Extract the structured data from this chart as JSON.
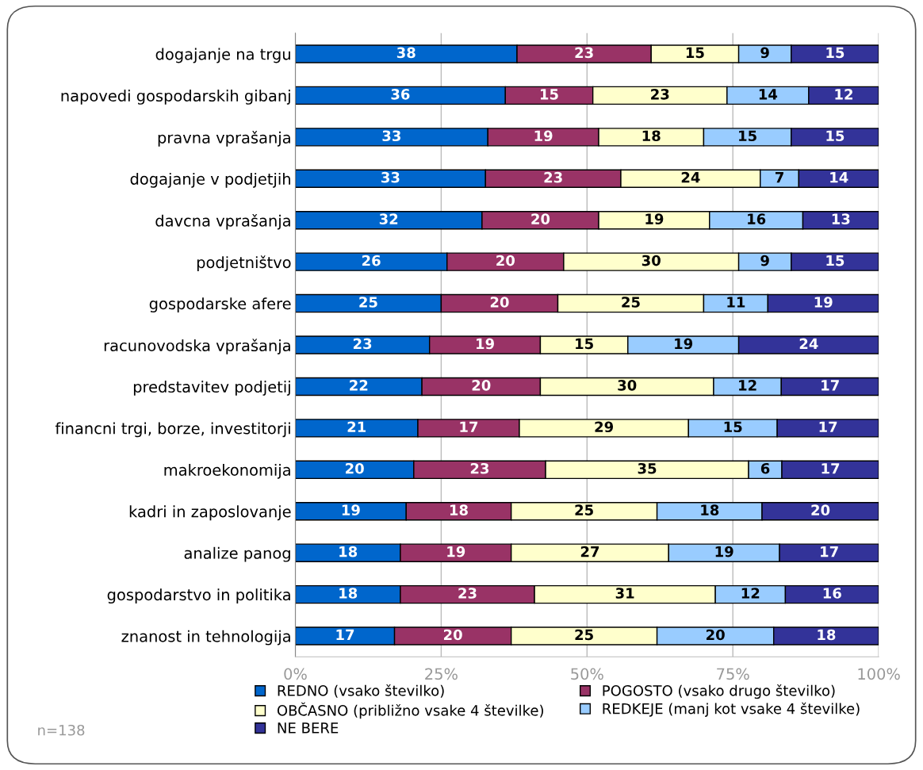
{
  "chart_data": {
    "type": "bar",
    "orientation": "horizontal",
    "stacked": true,
    "categories": [
      "dogajanje na trgu",
      "napovedi gospodarskih gibanj",
      "pravna vprašanja",
      "dogajanje v podjetjih",
      "davcna vprašanja",
      "podjetništvo",
      "gospodarske afere",
      "racunovodska vprašanja",
      "predstavitev podjetij",
      "financni trgi, borze, investitorji",
      "makroekonomija",
      "kadri in zaposlovanje",
      "analize panog",
      "gospodarstvo in politika",
      "znanost in tehnologija"
    ],
    "series": [
      {
        "name": "REDNO (vsako številko)",
        "color": "#0066cc",
        "values": [
          38,
          36,
          33,
          32.6,
          32,
          26,
          25,
          23,
          21.7,
          21.0,
          20.3,
          19,
          18,
          18,
          17
        ],
        "value_labels": [
          "38",
          "36",
          "33",
          "33",
          "32",
          "26",
          "25",
          "23",
          "22",
          "21",
          "20",
          "19",
          "18",
          "18",
          "17"
        ]
      },
      {
        "name": "POGOSTO (vsako drugo številko)",
        "color": "#993366",
        "values": [
          23,
          15,
          19,
          23.2,
          20,
          20,
          20,
          19,
          20.3,
          17.4,
          22.6,
          18,
          19,
          23,
          20
        ],
        "value_labels": [
          "23",
          "15",
          "19",
          "23",
          "20",
          "20",
          "20",
          "19",
          "20",
          "17",
          "23",
          "18",
          "19",
          "23",
          "20"
        ]
      },
      {
        "name": "OBČASNO (približno vsake 4 številke)",
        "color": "#ffffcc",
        "values": [
          15,
          23,
          18,
          23.9,
          19,
          30,
          25,
          15,
          29.7,
          29.0,
          34.8,
          25,
          27,
          31,
          25
        ],
        "value_labels": [
          "15",
          "23",
          "18",
          "24",
          "19",
          "30",
          "25",
          "15",
          "30",
          "29",
          "35",
          "25",
          "27",
          "31",
          "25"
        ]
      },
      {
        "name": "REDKEJE (manj kot vsake 4 številke)",
        "color": "#99ccff",
        "values": [
          9,
          14,
          15,
          6.6,
          16,
          9,
          11,
          19,
          11.6,
          15.2,
          5.7,
          18,
          19,
          12,
          20
        ],
        "value_labels": [
          "9",
          "14",
          "15",
          "7",
          "16",
          "9",
          "11",
          "19",
          "12",
          "15",
          "6",
          "18",
          "19",
          "12",
          "20"
        ]
      },
      {
        "name": "NE BERE",
        "color": "#333399",
        "values": [
          15,
          12,
          15,
          13.7,
          13,
          15,
          19,
          24,
          16.7,
          17.4,
          16.6,
          20,
          17,
          16,
          18
        ],
        "value_labels": [
          "15",
          "12",
          "15",
          "14",
          "13",
          "15",
          "19",
          "24",
          "17",
          "17",
          "17",
          "20",
          "17",
          "16",
          "18"
        ]
      }
    ],
    "xlim": [
      0,
      100
    ],
    "xticks": [
      {
        "value": 0,
        "label": "0%"
      },
      {
        "value": 25,
        "label": "25%"
      },
      {
        "value": 50,
        "label": "50%"
      },
      {
        "value": 75,
        "label": "75%"
      },
      {
        "value": 100,
        "label": "100%"
      }
    ],
    "grid": "x",
    "legend": "bottom",
    "annotations": [
      "n=138"
    ]
  }
}
